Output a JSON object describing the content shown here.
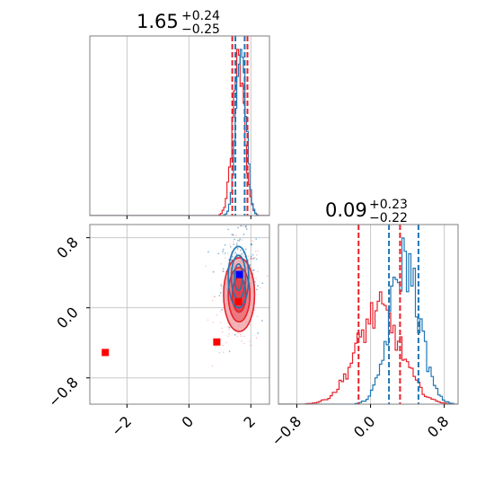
{
  "colors": {
    "red": "#e8222d",
    "blue": "#1f77b4",
    "marker_blue": "#0000ff",
    "marker_red": "#ff0000"
  },
  "chart_data": [
    {
      "type": "histogram",
      "panel": "top-left",
      "title": {
        "main": "1.65",
        "plus": "+0.24",
        "minus": "−0.25"
      },
      "xlim": [
        -3.2,
        2.6
      ],
      "xticks": [
        -2,
        0,
        2
      ],
      "quantile_lines": {
        "red": [
          1.4,
          1.89
        ],
        "blue": [
          1.5,
          1.8
        ]
      },
      "series": [
        {
          "color": "red",
          "peak": 1.6,
          "sigma": 0.19
        },
        {
          "color": "blue",
          "peak": 1.68,
          "sigma": 0.16
        }
      ]
    },
    {
      "type": "scatter-contour",
      "panel": "bottom-left",
      "xlim": [
        -3.2,
        2.6
      ],
      "ylim": [
        -1.1,
        0.95
      ],
      "xticks": [
        -2,
        0,
        2
      ],
      "xtick_labels": [
        "−2",
        "0",
        "2"
      ],
      "yticks": [
        0.8,
        0.0,
        -0.8
      ],
      "ytick_labels": [
        "0.8",
        "0.0",
        "−0.8"
      ],
      "blue_contours": {
        "center": [
          1.6,
          0.35
        ],
        "radii": [
          [
            0.33,
            0.35
          ],
          [
            0.23,
            0.25
          ],
          [
            0.13,
            0.15
          ]
        ]
      },
      "red_contours": {
        "center": [
          1.62,
          0.15
        ],
        "radii": [
          [
            0.5,
            0.42
          ],
          [
            0.35,
            0.31
          ],
          [
            0.22,
            0.2
          ]
        ]
      },
      "markers": [
        {
          "x": 1.63,
          "y": 0.38,
          "color": "marker_blue"
        },
        {
          "x": 1.6,
          "y": 0.07,
          "color": "marker_red"
        },
        {
          "x": 0.9,
          "y": -0.39,
          "color": "marker_red"
        },
        {
          "x": -2.7,
          "y": -0.51,
          "color": "marker_red"
        }
      ]
    },
    {
      "type": "histogram",
      "panel": "bottom-right",
      "title": {
        "main": "0.09",
        "plus": "+0.23",
        "minus": "−0.22"
      },
      "xlim": [
        -1.0,
        0.95
      ],
      "xticks": [
        -0.8,
        0.0,
        0.8
      ],
      "xtick_labels": [
        "−0.8",
        "0.0",
        "0.8"
      ],
      "quantile_lines": {
        "red": [
          -0.13,
          0.32
        ],
        "blue": [
          0.2,
          0.52
        ]
      },
      "series": [
        {
          "color": "red",
          "peak": 0.09,
          "sigma": 0.24
        },
        {
          "color": "blue",
          "peak": 0.37,
          "sigma": 0.16
        }
      ]
    }
  ]
}
